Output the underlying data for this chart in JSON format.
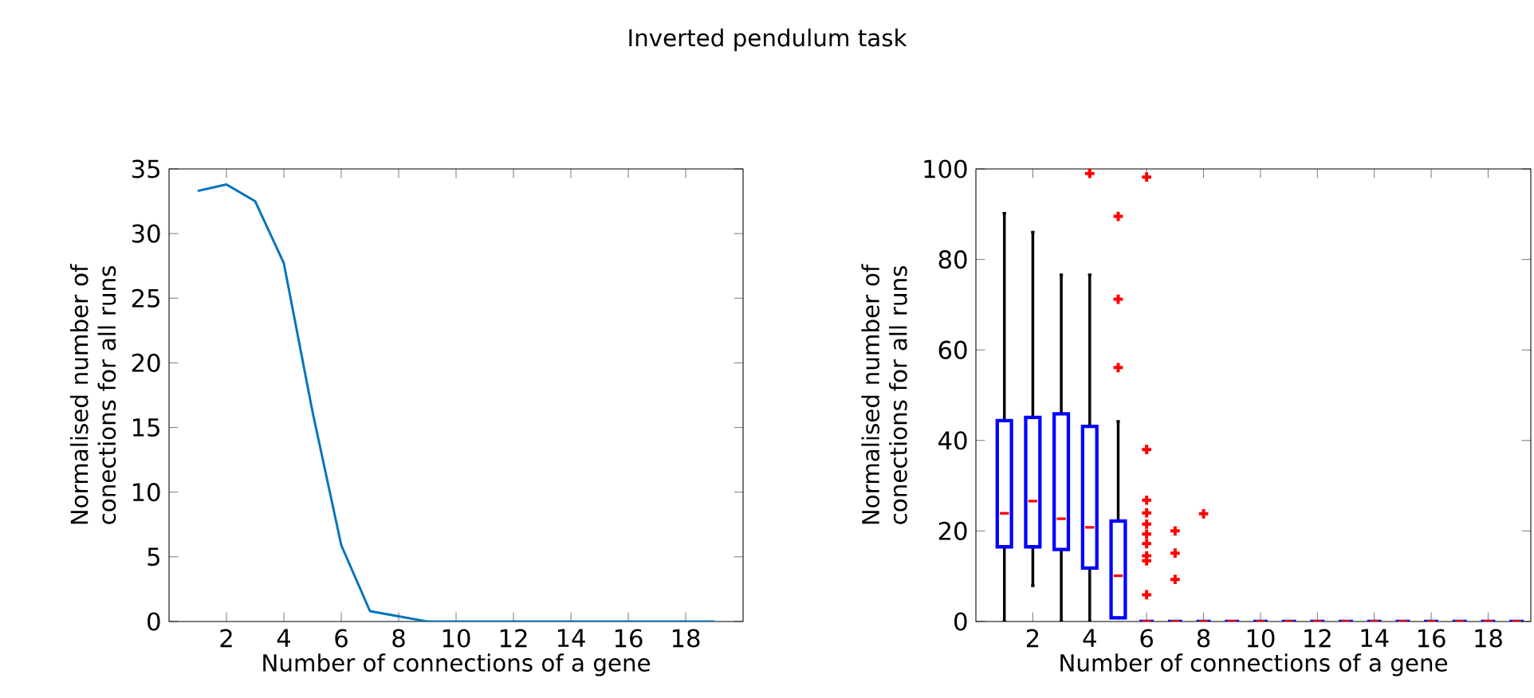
{
  "chart_data": [
    {
      "type": "line",
      "title": "Inverted pendulum task",
      "xlabel": "Number of connections of a gene",
      "ylabel": "Normalised number of conections for all runs",
      "x": [
        1,
        2,
        3,
        4,
        5,
        6,
        7,
        8,
        9,
        10,
        11,
        12,
        13,
        14,
        15,
        16,
        17,
        18,
        19
      ],
      "values": [
        33.3,
        33.8,
        32.5,
        27.7,
        16.2,
        5.9,
        0.8,
        0.4,
        0,
        0,
        0,
        0,
        0,
        0,
        0,
        0,
        0,
        0,
        0
      ],
      "color": "#0072bd",
      "xlim": [
        0,
        20
      ],
      "ylim": [
        0,
        35
      ],
      "xticks": [
        2,
        4,
        6,
        8,
        10,
        12,
        14,
        16,
        18
      ],
      "yticks": [
        0,
        5,
        10,
        15,
        20,
        25,
        30,
        35
      ]
    },
    {
      "type": "box",
      "xlabel": "Number of connections of a gene",
      "ylabel": "Normalised number of conections for all runs",
      "x": [
        1,
        2,
        3,
        4,
        5,
        6,
        7,
        8,
        9,
        10,
        11,
        12,
        13,
        14,
        15,
        16,
        17,
        18,
        19
      ],
      "color": "#0000ff",
      "marker": "cross",
      "boxes": [
        {
          "low": 0,
          "q1": 16.5,
          "median": 23.9,
          "q3": 44.4,
          "high": 90.2
        },
        {
          "low": 7.9,
          "q1": 16.5,
          "median": 26.6,
          "q3": 45.1,
          "high": 86.0
        },
        {
          "low": 0,
          "q1": 15.9,
          "median": 22.7,
          "q3": 45.9,
          "high": 76.6
        },
        {
          "low": 0,
          "q1": 11.8,
          "median": 20.8,
          "q3": 43.1,
          "high": 76.6,
          "outliers": [
            99
          ]
        },
        {
          "low": 0.8,
          "q1": 0.8,
          "median": 10.1,
          "q3": 22.2,
          "high": 44.2,
          "outliers": [
            89.5,
            71.2,
            56.1
          ]
        },
        {
          "low": 0,
          "q1": 0,
          "median": 0,
          "q3": 0,
          "high": 0,
          "outliers": [
            98.2,
            38.0,
            26.8,
            24.0,
            21.5,
            19.3,
            17.2,
            14.5,
            13.4,
            5.9
          ]
        },
        {
          "low": 0,
          "q1": 0,
          "median": 0,
          "q3": 0,
          "high": 0,
          "outliers": [
            20.0,
            15.1,
            9.3
          ]
        },
        {
          "low": 0,
          "q1": 0,
          "median": 0,
          "q3": 0,
          "high": 0,
          "outliers": [
            23.8
          ]
        },
        {
          "low": 0,
          "q1": 0,
          "median": 0,
          "q3": 0,
          "high": 0
        },
        {
          "low": 0,
          "q1": 0,
          "median": 0,
          "q3": 0,
          "high": 0
        },
        {
          "low": 0,
          "q1": 0,
          "median": 0,
          "q3": 0,
          "high": 0
        },
        {
          "low": 0,
          "q1": 0,
          "median": 0,
          "q3": 0,
          "high": 0
        },
        {
          "low": 0,
          "q1": 0,
          "median": 0,
          "q3": 0,
          "high": 0
        },
        {
          "low": 0,
          "q1": 0,
          "median": 0,
          "q3": 0,
          "high": 0
        },
        {
          "low": 0,
          "q1": 0,
          "median": 0,
          "q3": 0,
          "high": 0
        },
        {
          "low": 0,
          "q1": 0,
          "median": 0,
          "q3": 0,
          "high": 0
        },
        {
          "low": 0,
          "q1": 0,
          "median": 0,
          "q3": 0,
          "high": 0
        },
        {
          "low": 0,
          "q1": 0,
          "median": 0,
          "q3": 0,
          "high": 0
        },
        {
          "low": 0,
          "q1": 0,
          "median": 0,
          "q3": 0,
          "high": 0
        }
      ],
      "xlim": [
        0,
        19.5
      ],
      "ylim": [
        0,
        100
      ],
      "xticks": [
        2,
        4,
        6,
        8,
        10,
        12,
        14,
        16,
        18
      ],
      "yticks": [
        0,
        20,
        40,
        60,
        80,
        100
      ]
    }
  ]
}
